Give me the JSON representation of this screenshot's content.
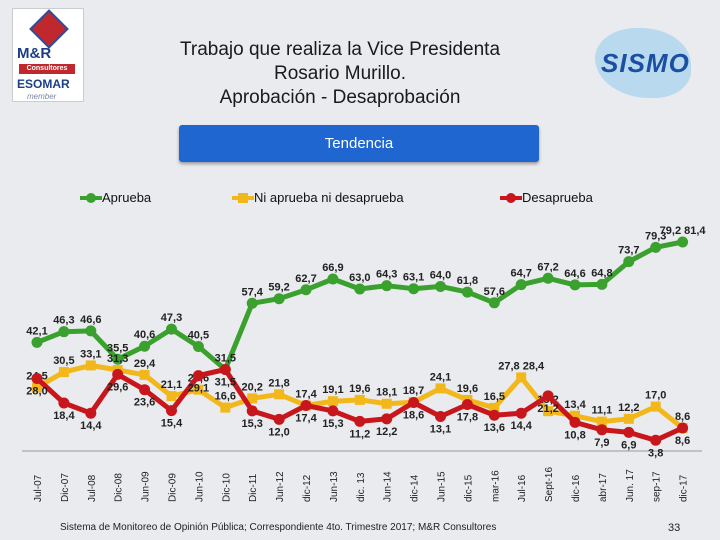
{
  "header": {
    "title_lines": [
      "Trabajo que realiza la  Vice Presidenta",
      "Rosario Murillo.",
      "Aprobación - Desaprobación"
    ],
    "button": "Tendencia"
  },
  "logos": {
    "left": {
      "line1": "M&R",
      "line2": "Consultores",
      "line3": "ESOMAR",
      "line4": "member"
    },
    "right": "SISMO"
  },
  "footer": {
    "text": "Sistema de Monitoreo de Opinión Pública; Correspondiente 4to. Trimestre 2017; M&R Consultores",
    "page": "33"
  },
  "chart_data": {
    "type": "line",
    "categories": [
      "Jul-07",
      "Dic-07",
      "Jul-08",
      "Dic-08",
      "Jun-09",
      "Dic-09",
      "Jun-10",
      "Dic-10",
      "Dic-11",
      "Jun-12",
      "dic-12",
      "Jun-13",
      "dic. 13",
      "Jun-14",
      "dic-14",
      "Jun-15",
      "dic-15",
      "mar-16",
      "Jul-16",
      "Sept-16",
      "dic-16",
      "abr-17",
      "Jun. 17",
      "sep-17",
      "dic-17"
    ],
    "ylim": [
      0,
      90
    ],
    "series": [
      {
        "name": "Aprueba",
        "color": "#3aa02e",
        "values": [
          42.1,
          46.3,
          46.6,
          35.5,
          40.6,
          47.3,
          40.5,
          31.5,
          57.4,
          59.2,
          62.7,
          66.9,
          63.0,
          64.3,
          63.1,
          64.0,
          61.8,
          57.6,
          64.7,
          67.2,
          64.6,
          64.8,
          73.7,
          79.3,
          81.4
        ],
        "labels": [
          "42,1",
          "46,3",
          "46,6",
          "35,5",
          "40,6",
          "47,3",
          "40,5",
          "31,5",
          "57,4",
          "59,2",
          "62,7",
          "66,9",
          "63,0",
          "64,3",
          "63,1",
          "64,0",
          "61,8",
          "57,6",
          "64,7",
          "67,2",
          "64,6",
          "64,8",
          "73,7",
          "79,3",
          "79,2  81,4"
        ]
      },
      {
        "name": "Ni aprueba ni desaprueba",
        "color": "#f2b81b",
        "values": [
          24.5,
          30.5,
          33.1,
          31.3,
          29.4,
          21.1,
          23.6,
          16.6,
          20.2,
          21.8,
          17.4,
          19.1,
          19.6,
          18.1,
          18.7,
          24.1,
          19.6,
          16.5,
          28.4,
          15.2,
          13.4,
          11.1,
          12.2,
          17.0,
          8.6
        ],
        "labels": [
          "24,5",
          "30,5",
          "33,1",
          "31,3",
          "29,4",
          "21,1",
          "23,6",
          "16,6",
          "20,2",
          "21,8",
          "17,4",
          "19,1",
          "19,6",
          "18,1",
          "18,7",
          "24,1",
          "19,6",
          "16,5",
          "27,8 28,4",
          "15,2",
          "13,4",
          "11,1",
          "12,2",
          "17,0",
          "8,6"
        ]
      },
      {
        "name": "Desaprueba",
        "color": "#c8161d",
        "values": [
          28.0,
          18.4,
          14.4,
          29.6,
          23.6,
          15.4,
          29.1,
          31.5,
          15.3,
          12.0,
          17.4,
          15.3,
          11.2,
          12.2,
          18.6,
          13.1,
          17.8,
          13.6,
          14.4,
          21.2,
          10.8,
          7.9,
          6.9,
          3.8,
          8.6
        ],
        "labels": [
          "28,0",
          "18,4",
          "14,4",
          "29,6",
          "23,6",
          "15,4",
          "29,1",
          "31,5",
          "15,3",
          "12,0",
          "17,4",
          "15,3",
          "11,2",
          "12,2",
          "18,6",
          "13,1",
          "17,8",
          "13,6",
          "14,4",
          "21,2",
          "10,8",
          "7,9",
          "6,9",
          "3,8",
          "8,6"
        ]
      }
    ]
  }
}
